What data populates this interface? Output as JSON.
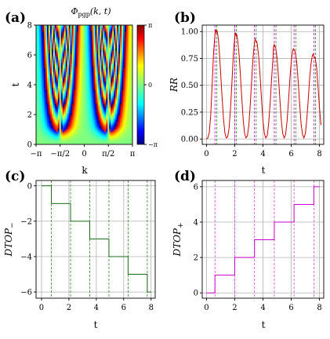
{
  "chart_data": [
    {
      "panel": "(a)",
      "type": "heatmap",
      "title": "Φpgp(k,t)",
      "title_main": "Φ",
      "title_sub": "pgp",
      "title_args": "(k, t)",
      "xlabel": "k",
      "ylabel": "t",
      "xlim": [
        -3.1416,
        3.1416
      ],
      "ylim": [
        0,
        8
      ],
      "xticks": [
        -3.1416,
        -1.5708,
        0,
        1.5708,
        3.1416
      ],
      "xtick_labels": [
        "−π",
        "−π/2",
        "0",
        "π/2",
        "π"
      ],
      "yticks": [
        0,
        2,
        4,
        6,
        8
      ],
      "ytick_labels": [
        "0",
        "2",
        "4",
        "6",
        "8"
      ],
      "colorbar": {
        "range": [
          -3.1416,
          3.1416
        ],
        "ticks": [
          3.1416,
          0,
          -3.1416
        ],
        "tick_labels": [
          "π",
          "0",
          "−π"
        ],
        "colormap": "jet"
      },
      "critical_momenta": [
        -1.5708,
        1.5708
      ]
    },
    {
      "panel": "(b)",
      "type": "line",
      "xlabel": "t",
      "ylabel": "RR",
      "xlim": [
        -0.3,
        8.3
      ],
      "ylim": [
        -0.05,
        1.06
      ],
      "xticks": [
        0,
        2,
        4,
        6,
        8
      ],
      "yticks": [
        0,
        0.25,
        0.5,
        0.75,
        1.0
      ],
      "ytick_labels": [
        "0.00",
        "0.25",
        "0.50",
        "0.75",
        "1.00"
      ],
      "grid": true,
      "line_color": "#cc0000",
      "vline_color": "#cc00cc",
      "vline_color2": "#2a8a2a",
      "x": [
        0,
        0.1,
        0.2,
        0.3,
        0.4,
        0.5,
        0.6,
        0.65,
        0.7,
        0.75,
        0.8,
        0.85,
        0.9,
        1.0,
        1.1,
        1.2,
        1.3,
        1.4,
        1.5,
        1.6,
        1.7,
        1.8,
        1.9,
        2.0,
        2.05,
        2.1,
        2.15,
        2.2,
        2.3,
        2.4,
        2.5,
        2.6,
        2.7,
        2.8,
        2.9,
        3.0,
        3.1,
        3.2,
        3.3,
        3.4,
        3.45,
        3.5,
        3.55,
        3.6,
        3.7,
        3.8,
        3.9,
        4.0,
        4.1,
        4.2,
        4.3,
        4.4,
        4.5,
        4.6,
        4.7,
        4.75,
        4.8,
        4.85,
        4.9,
        5.0,
        5.1,
        5.2,
        5.3,
        5.4,
        5.5,
        5.6,
        5.7,
        5.8,
        5.9,
        6.0,
        6.1,
        6.15,
        6.2,
        6.25,
        6.3,
        6.4,
        6.5,
        6.6,
        6.7,
        6.8,
        6.9,
        7.0,
        7.1,
        7.2,
        7.3,
        7.4,
        7.5,
        7.55,
        7.6,
        7.65,
        7.7,
        7.8,
        7.9,
        8.0,
        8.1
      ],
      "y": [
        0,
        0.01,
        0.06,
        0.22,
        0.5,
        0.8,
        0.97,
        1.02,
        0.99,
        1.01,
        0.97,
        0.92,
        0.84,
        0.62,
        0.4,
        0.2,
        0.06,
        0.01,
        0.02,
        0.1,
        0.28,
        0.52,
        0.78,
        0.95,
        0.99,
        0.96,
        0.97,
        0.93,
        0.8,
        0.6,
        0.38,
        0.18,
        0.05,
        0.01,
        0.03,
        0.13,
        0.32,
        0.55,
        0.76,
        0.9,
        0.93,
        0.91,
        0.91,
        0.88,
        0.76,
        0.58,
        0.36,
        0.17,
        0.05,
        0.01,
        0.03,
        0.14,
        0.32,
        0.54,
        0.74,
        0.86,
        0.88,
        0.86,
        0.85,
        0.75,
        0.57,
        0.36,
        0.17,
        0.05,
        0.01,
        0.04,
        0.16,
        0.34,
        0.55,
        0.72,
        0.82,
        0.84,
        0.83,
        0.82,
        0.8,
        0.7,
        0.52,
        0.32,
        0.14,
        0.04,
        0.01,
        0.05,
        0.18,
        0.36,
        0.56,
        0.7,
        0.78,
        0.79,
        0.77,
        0.76,
        0.75,
        0.66,
        0.48,
        0.29,
        0.13
      ],
      "vlines_primary": [
        0.72,
        2.12,
        3.52,
        4.92,
        6.32,
        7.72
      ],
      "vlines_secondary": [
        0.6,
        2.0,
        3.4,
        4.8,
        6.2,
        7.6
      ]
    },
    {
      "panel": "(c)",
      "type": "line",
      "xlabel": "t",
      "ylabel": "DTOP−",
      "ylabel_main": "DTOP",
      "ylabel_sub": "−",
      "xlim": [
        -0.4,
        8.3
      ],
      "ylim": [
        -6.35,
        0.3
      ],
      "xticks": [
        0,
        2,
        4,
        6,
        8
      ],
      "yticks": [
        0,
        -2,
        -4,
        -6
      ],
      "ytick_labels": [
        "0",
        "−2",
        "−4",
        "−6"
      ],
      "grid": true,
      "line_color": "#1a6b1a",
      "vline_color": "#2a8a2a",
      "x": [
        0,
        0.72,
        0.72,
        2.12,
        2.12,
        3.52,
        3.52,
        4.92,
        4.92,
        6.32,
        6.32,
        7.72,
        7.72,
        8.0
      ],
      "y": [
        0,
        0,
        -1,
        -1,
        -2,
        -2,
        -3,
        -3,
        -4,
        -4,
        -5,
        -5,
        -6,
        -6
      ],
      "vlines": [
        0.72,
        2.12,
        3.52,
        4.92,
        6.32,
        7.72
      ]
    },
    {
      "panel": "(d)",
      "type": "line",
      "xlabel": "t",
      "ylabel": "DTOP+",
      "ylabel_main": "DTOP",
      "ylabel_sub": "+",
      "xlim": [
        -0.3,
        8.3
      ],
      "ylim": [
        -0.3,
        6.35
      ],
      "xticks": [
        0,
        2,
        4,
        6,
        8
      ],
      "yticks": [
        0,
        2,
        4,
        6
      ],
      "ytick_labels": [
        "0",
        "2",
        "4",
        "6"
      ],
      "grid": true,
      "line_color": "#cc00cc",
      "vline_color": "#dd44dd",
      "x": [
        0,
        0.6,
        0.6,
        2.0,
        2.0,
        3.4,
        3.4,
        4.8,
        4.8,
        6.2,
        6.2,
        7.6,
        7.6,
        8.0
      ],
      "y": [
        0,
        0,
        1,
        1,
        2,
        2,
        3,
        3,
        4,
        4,
        5,
        5,
        6,
        6
      ],
      "vlines": [
        0.6,
        2.0,
        3.4,
        4.8,
        6.2,
        7.6
      ]
    }
  ]
}
